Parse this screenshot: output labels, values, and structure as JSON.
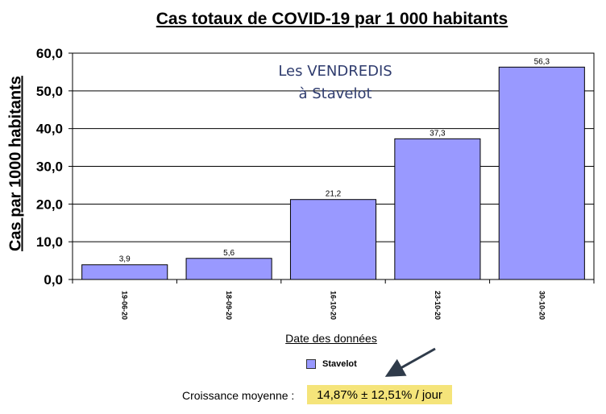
{
  "chart_data": {
    "type": "bar",
    "title": "Cas totaux de COVID-19 par 1 000 habitants",
    "annotation": "Les VENDREDIS à Stavelot",
    "xlabel": "Date des données",
    "ylabel": "Cas par 1000 habitants",
    "categories": [
      "19-06-20",
      "18-09-20",
      "16-10-20",
      "23-10-20",
      "30-10-20"
    ],
    "series": [
      {
        "name": "Stavelot",
        "values": [
          3.9,
          5.6,
          21.2,
          37.3,
          56.3
        ],
        "color": "#9999ff"
      }
    ],
    "value_labels": [
      "3,9",
      "5,6",
      "21,2",
      "37,3",
      "56,3"
    ],
    "ylim": [
      0,
      60
    ],
    "yticks": [
      "0,0",
      "10,0",
      "20,0",
      "30,0",
      "40,0",
      "50,0",
      "60,0"
    ],
    "grid": true,
    "legend_position": "bottom"
  },
  "growth": {
    "label": "Croissance moyenne :",
    "value": "14,87%  ± 12,51% / jour",
    "highlight_color": "#f5e47a"
  }
}
